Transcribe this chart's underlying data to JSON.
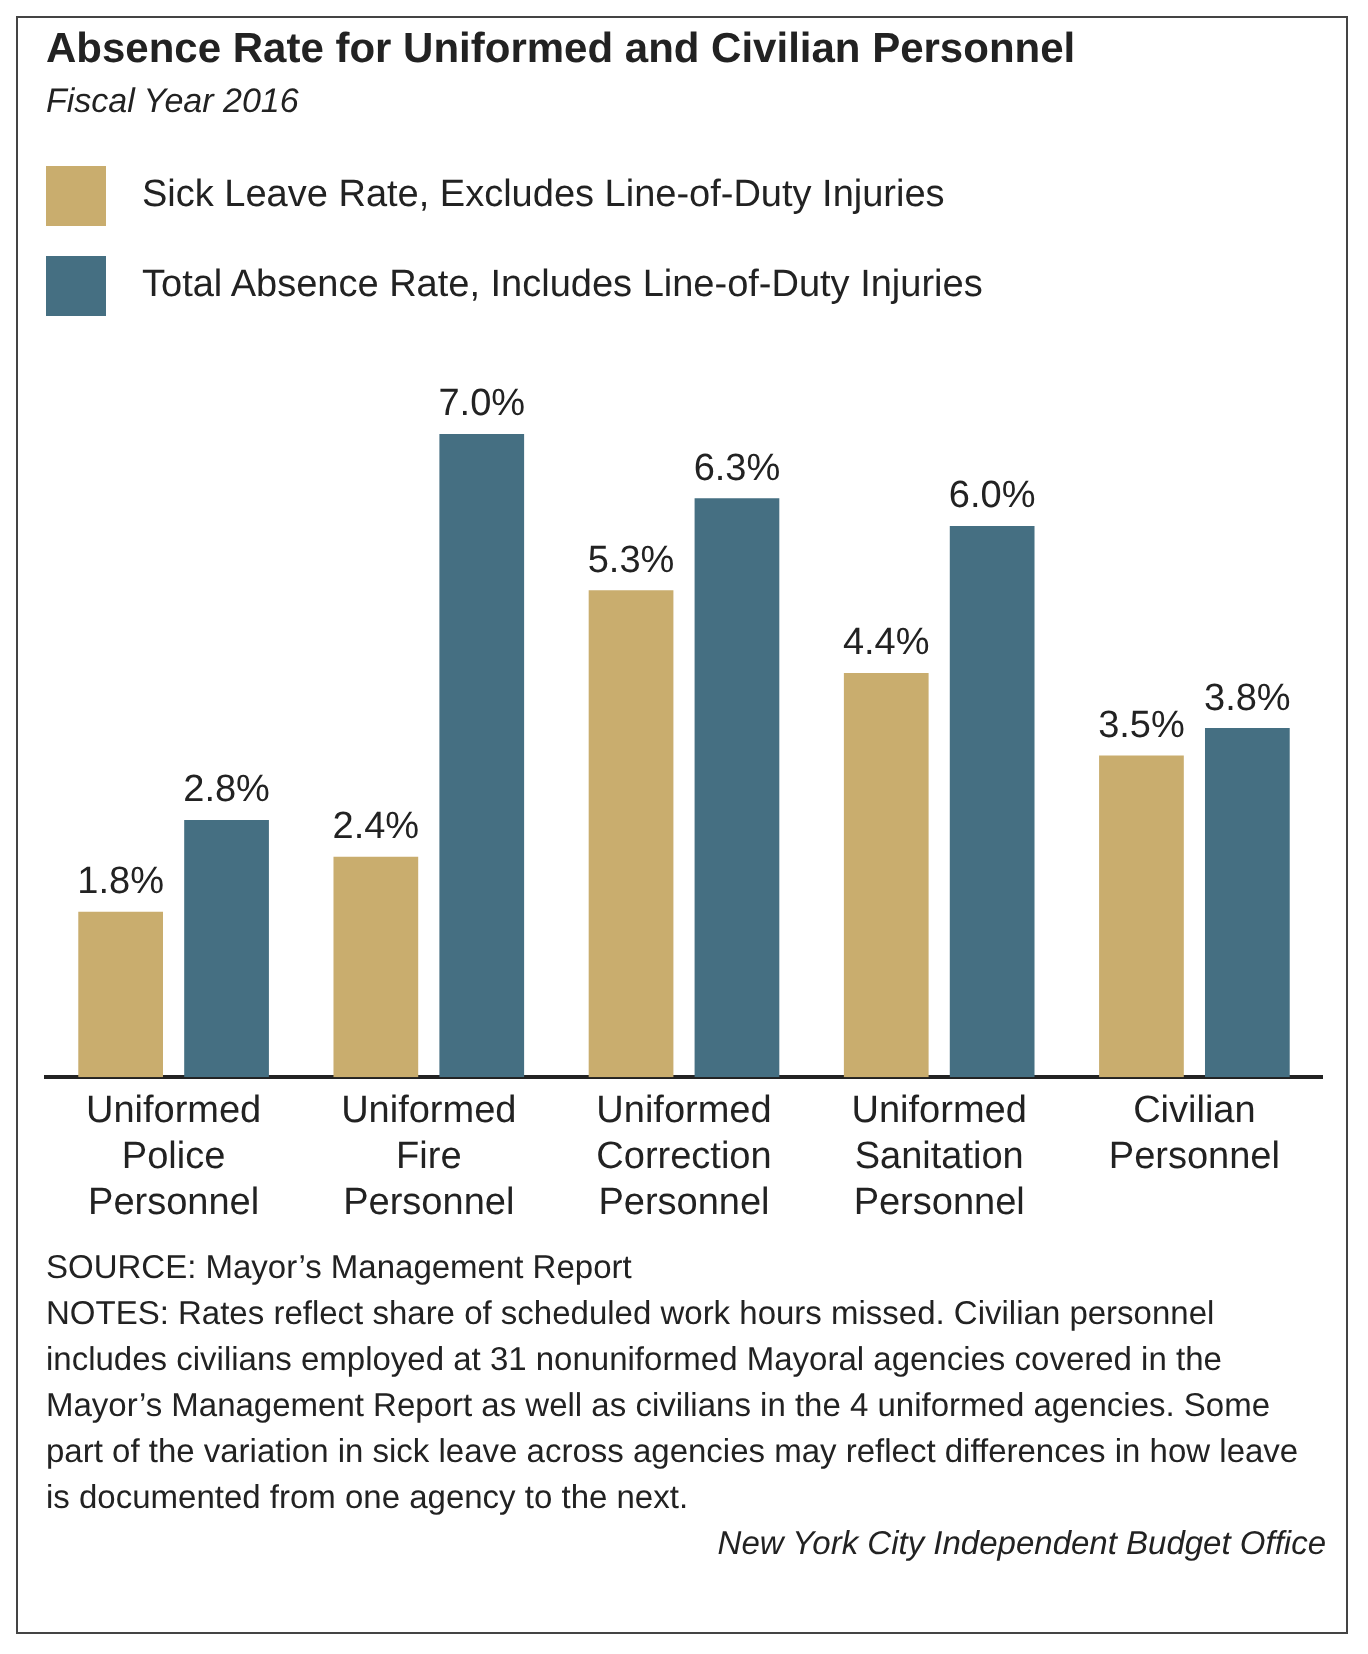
{
  "chart_data": {
    "type": "bar",
    "title": "Absence Rate for Uniformed and Civilian Personnel",
    "subtitle": "Fiscal Year 2016",
    "categories": [
      "Uniformed Police Personnel",
      "Uniformed Fire Personnel",
      "Uniformed Correction Personnel",
      "Uniformed Sanitation Personnel",
      "Civilian Personnel"
    ],
    "series": [
      {
        "name": "Sick Leave Rate, Excludes Line-of-Duty Injuries",
        "color": "#c9ad6e",
        "values": [
          1.8,
          2.4,
          5.3,
          4.4,
          3.5
        ],
        "value_labels": [
          "1.8%",
          "2.4%",
          "5.3%",
          "4.4%",
          "3.5%"
        ]
      },
      {
        "name": "Total Absence Rate, Includes Line-of-Duty Injuries",
        "color": "#456f82",
        "values": [
          2.8,
          7.0,
          6.3,
          6.0,
          3.8
        ],
        "value_labels": [
          "2.8%",
          "7.0%",
          "6.3%",
          "6.0%",
          "3.8%"
        ]
      }
    ],
    "legend": "top left",
    "grid": false,
    "annotations": [
      "SOURCE: Mayor’s Management Report",
      "NOTES: Rates reflect share of scheduled work hours missed. Civilian personnel includes civilians employed at 31 nonuniformed Mayoral agencies covered in the Mayor’s Management Report as well as civilians in the 4 uniformed agencies. Some part of the variation in sick leave across agencies may reflect differences in how leave is documented from one agency to the next.",
      "New York City Independent Budget Office"
    ]
  }
}
